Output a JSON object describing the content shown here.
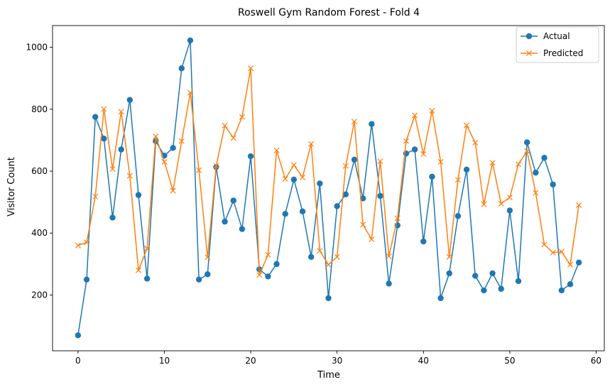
{
  "chart_data": {
    "type": "line",
    "title": "Roswell Gym Random Forest - Fold 4",
    "xlabel": "Time",
    "ylabel": "Visitor Count",
    "xlim": [
      -2.95,
      60.95
    ],
    "ylim": [
      20,
      1070
    ],
    "xticks": [
      0,
      10,
      20,
      30,
      40,
      50,
      60
    ],
    "yticks": [
      200,
      400,
      600,
      800,
      1000
    ],
    "grid": false,
    "legend": "top-right",
    "x": [
      0,
      1,
      2,
      3,
      4,
      5,
      6,
      7,
      8,
      9,
      10,
      11,
      12,
      13,
      14,
      15,
      16,
      17,
      18,
      19,
      20,
      21,
      22,
      23,
      24,
      25,
      26,
      27,
      28,
      29,
      30,
      31,
      32,
      33,
      34,
      35,
      36,
      37,
      38,
      39,
      40,
      41,
      42,
      43,
      44,
      45,
      46,
      47,
      48,
      49,
      50,
      51,
      52,
      53,
      54,
      55,
      56,
      57,
      58
    ],
    "series": [
      {
        "name": "Actual",
        "color": "#1f77b4",
        "marker": "circle",
        "values": [
          70,
          250,
          775,
          705,
          450,
          670,
          830,
          523,
          253,
          697,
          650,
          675,
          932,
          1022,
          250,
          267,
          613,
          437,
          505,
          413,
          648,
          283,
          260,
          300,
          462,
          573,
          470,
          323,
          560,
          190,
          487,
          525,
          637,
          512,
          752,
          520,
          237,
          425,
          657,
          670,
          373,
          582,
          190,
          270,
          455,
          605,
          262,
          215,
          270,
          220,
          473,
          245,
          693,
          595,
          643,
          557,
          215,
          235,
          305
        ]
      },
      {
        "name": "Predicted",
        "color": "#ff7f0e",
        "marker": "x",
        "values": [
          360,
          370,
          518,
          800,
          607,
          792,
          585,
          280,
          350,
          712,
          630,
          537,
          697,
          853,
          603,
          322,
          617,
          747,
          707,
          775,
          932,
          265,
          330,
          667,
          575,
          620,
          580,
          688,
          343,
          298,
          323,
          617,
          760,
          427,
          380,
          632,
          325,
          448,
          697,
          780,
          655,
          795,
          630,
          323,
          572,
          748,
          692,
          493,
          627,
          495,
          515,
          622,
          665,
          530,
          363,
          337,
          340,
          298,
          490
        ]
      }
    ]
  }
}
